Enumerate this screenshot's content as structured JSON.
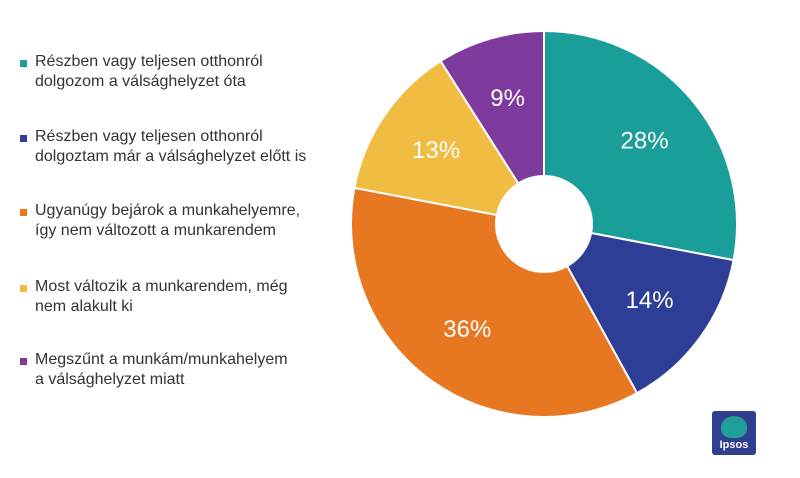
{
  "chart_data": {
    "type": "pie",
    "donut": true,
    "start_angle_deg": 0,
    "direction": "clockwise",
    "legend_position": "left",
    "slices": [
      {
        "label": "Részben vagy teljesen otthonról\ndolgozom a válsághelyzet óta",
        "value": 28,
        "value_label": "28%",
        "color": "#1a9e9a"
      },
      {
        "label": "Részben vagy teljesen otthonról\ndolgoztam már a válsághelyzet előtt is",
        "value": 14,
        "value_label": "14%",
        "color": "#2e3e96"
      },
      {
        "label": "Ugyanúgy bejárok a munkahelyemre,\nígy nem változott a munkarendem",
        "value": 36,
        "value_label": "36%",
        "color": "#e87722"
      },
      {
        "label": "Most változik a munkarendem, még\nnem alakult ki",
        "value": 13,
        "value_label": "13%",
        "color": "#f0bc42"
      },
      {
        "label": "Megszűnt a munkám/munkahelyem\na válsághelyzet miatt",
        "value": 9,
        "value_label": "9%",
        "color": "#7e3a9c"
      }
    ]
  },
  "logo": {
    "text": "Ipsos",
    "color": "#2f3e8f",
    "accent": "#1f9e9a"
  }
}
